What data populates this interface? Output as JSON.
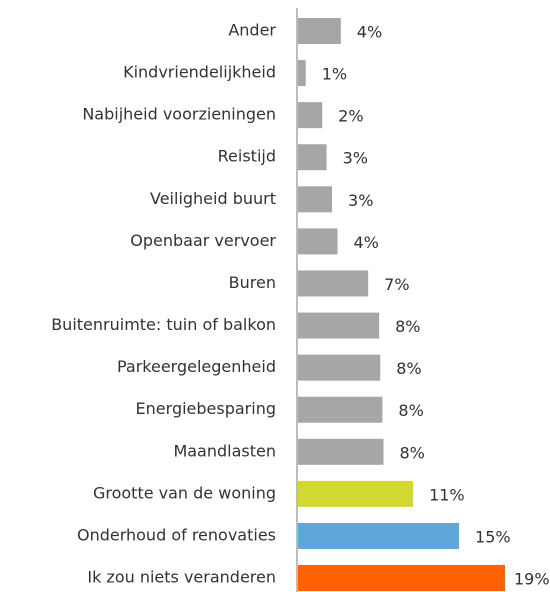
{
  "chart_data": {
    "type": "barh",
    "categories": [
      "Ander",
      "Kindvriendelijkheid",
      "Nabijheid voorzieningen",
      "Reistijd",
      "Veiligheid buurt",
      "Openbaar vervoer",
      "Buren",
      "Buitenruimte: tuin of balkon",
      "Parkeergelegenheid",
      "Energiebesparing",
      "Maandlasten",
      "Grootte van de woning",
      "Onderhoud of renovaties",
      "Ik zou niets veranderen"
    ],
    "values": [
      4.0,
      0.8,
      2.3,
      2.7,
      3.2,
      3.7,
      6.5,
      7.5,
      7.6,
      7.8,
      7.9,
      10.6,
      14.8,
      19.0
    ],
    "value_labels": [
      "4%",
      "1%",
      "2%",
      "3%",
      "3%",
      "4%",
      "7%",
      "8%",
      "8%",
      "8%",
      "8%",
      "11%",
      "15%",
      "19%"
    ],
    "colors": [
      "#a6a6a6",
      "#a6a6a6",
      "#a6a6a6",
      "#a6a6a6",
      "#a6a6a6",
      "#a6a6a6",
      "#a6a6a6",
      "#a6a6a6",
      "#a6a6a6",
      "#a6a6a6",
      "#a6a6a6",
      "#d1d831",
      "#5ea7dc",
      "#ff6200"
    ]
  }
}
